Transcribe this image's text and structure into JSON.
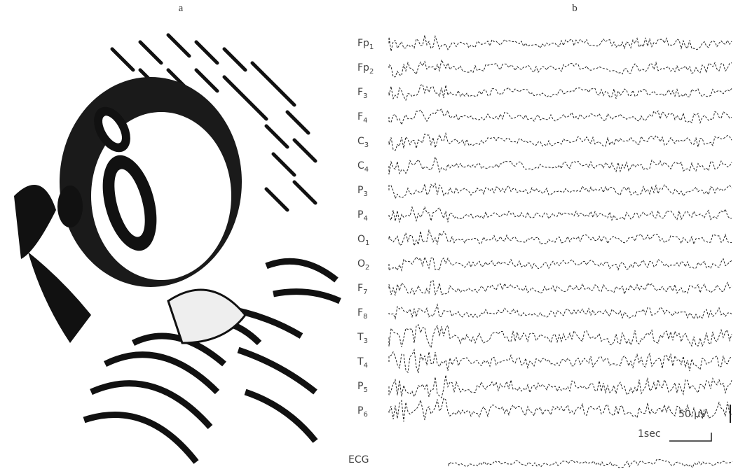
{
  "panels": {
    "a": "a",
    "b": "b"
  },
  "channels": [
    {
      "name": "Fp",
      "sub": "1"
    },
    {
      "name": "Fp",
      "sub": "2"
    },
    {
      "name": "F",
      "sub": "3"
    },
    {
      "name": "F",
      "sub": "4"
    },
    {
      "name": "C",
      "sub": "3"
    },
    {
      "name": "C",
      "sub": "4"
    },
    {
      "name": "P",
      "sub": "3"
    },
    {
      "name": "P",
      "sub": "4"
    },
    {
      "name": "O",
      "sub": "1"
    },
    {
      "name": "O",
      "sub": "2"
    },
    {
      "name": "F",
      "sub": "7"
    },
    {
      "name": "F",
      "sub": "8"
    },
    {
      "name": "T",
      "sub": "3"
    },
    {
      "name": "T",
      "sub": "4"
    },
    {
      "name": "P",
      "sub": "5"
    },
    {
      "name": "P",
      "sub": "6"
    }
  ],
  "ecg": "ECG",
  "scale": {
    "amplitude": "50 μV",
    "time": "1sec"
  }
}
